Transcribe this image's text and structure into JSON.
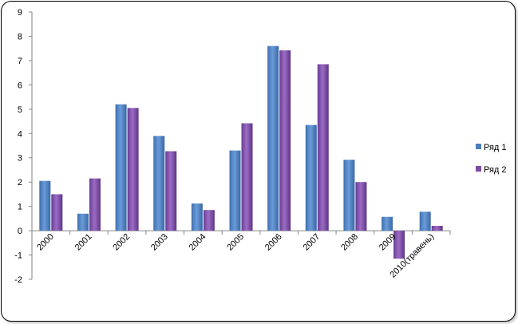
{
  "chart_data": {
    "type": "bar",
    "title": "",
    "xlabel": "",
    "ylabel": "",
    "ylim": [
      -2,
      9
    ],
    "yticks": [
      -2,
      -1,
      0,
      1,
      2,
      3,
      4,
      5,
      6,
      7,
      8,
      9
    ],
    "categories": [
      "2000",
      "2001",
      "2002",
      "2003",
      "2004",
      "2005",
      "2006",
      "2007",
      "2008",
      "2009",
      "2010(травень)"
    ],
    "series": [
      {
        "name": "Ряд 1",
        "color": "#4A7EBB",
        "values": [
          2.05,
          0.7,
          5.2,
          3.9,
          1.12,
          3.3,
          7.6,
          4.35,
          2.92,
          0.57,
          0.78
        ]
      },
      {
        "name": "Ряд 2",
        "color": "#7E4BA6",
        "values": [
          1.5,
          2.15,
          5.05,
          3.27,
          0.85,
          4.42,
          7.42,
          6.85,
          2.0,
          -1.15,
          0.2
        ]
      }
    ],
    "grid": false,
    "legend_position": "right"
  }
}
